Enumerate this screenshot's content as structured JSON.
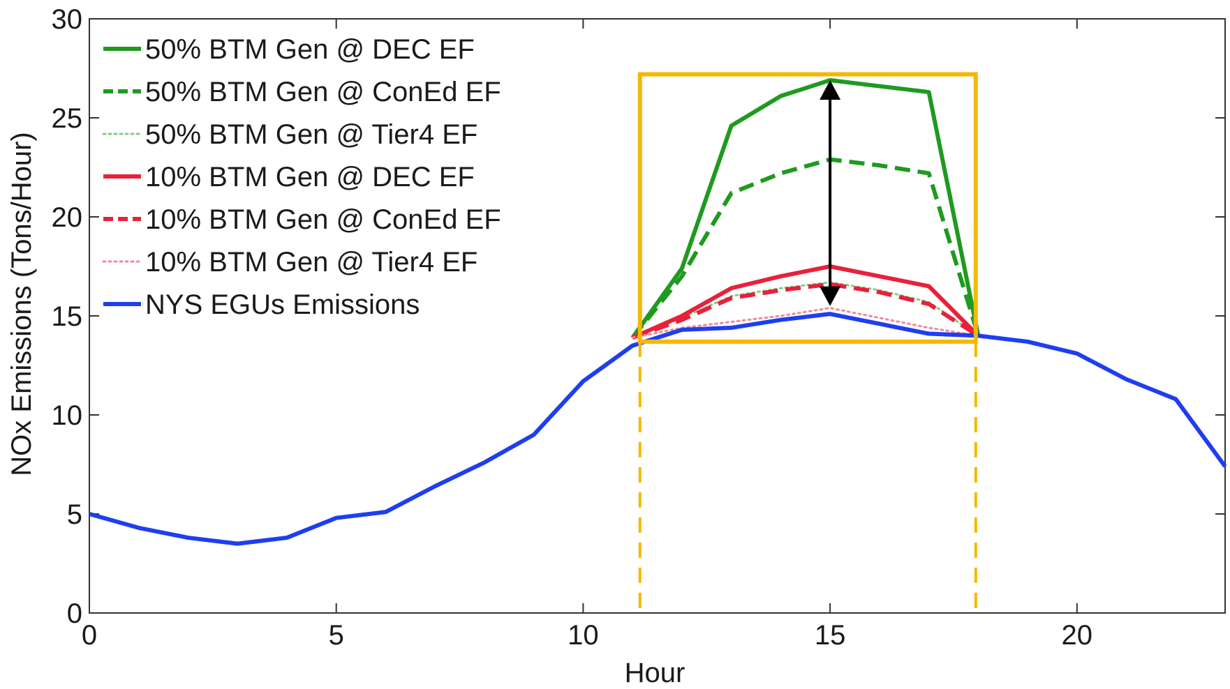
{
  "chart_data": {
    "type": "line",
    "title": "",
    "xlabel": "Hour",
    "ylabel": "NOx Emissions (Tons/Hour)",
    "xlim": [
      0,
      23
    ],
    "ylim": [
      0,
      30
    ],
    "xticks": [
      0,
      5,
      10,
      15,
      20
    ],
    "yticks": [
      0,
      5,
      10,
      15,
      20,
      25,
      30
    ],
    "grid": false,
    "legend_position": "top-left",
    "x": [
      0,
      1,
      2,
      3,
      4,
      5,
      6,
      7,
      8,
      9,
      10,
      11,
      12,
      13,
      14,
      15,
      16,
      17,
      18,
      19,
      20,
      21,
      22,
      23
    ],
    "series": [
      {
        "name": "50% BTM Gen @ DEC EF",
        "color": "#1f9a1f",
        "style": "solid",
        "x": [
          11,
          12,
          13,
          14,
          15,
          16,
          17,
          18
        ],
        "values": [
          13.9,
          17.4,
          24.6,
          26.1,
          26.9,
          26.6,
          26.3,
          14.0
        ]
      },
      {
        "name": "50% BTM Gen @ ConEd EF",
        "color": "#1f9a1f",
        "style": "dashed",
        "x": [
          11,
          12,
          13,
          14,
          15,
          16,
          17,
          18
        ],
        "values": [
          13.9,
          17.0,
          21.2,
          22.2,
          22.9,
          22.6,
          22.2,
          14.0
        ]
      },
      {
        "name": "50% BTM Gen @ Tier4 EF",
        "color": "#7fcf7f",
        "style": "dotted",
        "x": [
          11,
          12,
          13,
          14,
          15,
          16,
          17,
          18
        ],
        "values": [
          13.9,
          14.9,
          16.0,
          16.4,
          16.7,
          16.3,
          15.7,
          14.0
        ]
      },
      {
        "name": "10% BTM Gen @ DEC EF",
        "color": "#e8213a",
        "style": "solid",
        "x": [
          11,
          12,
          13,
          14,
          15,
          16,
          17,
          18
        ],
        "values": [
          13.9,
          15.0,
          16.4,
          17.0,
          17.5,
          17.0,
          16.5,
          14.0
        ]
      },
      {
        "name": "10% BTM Gen @ ConEd EF",
        "color": "#e8213a",
        "style": "dashed",
        "x": [
          11,
          12,
          13,
          14,
          15,
          16,
          17,
          18
        ],
        "values": [
          13.9,
          14.8,
          15.9,
          16.3,
          16.6,
          16.2,
          15.6,
          14.0
        ]
      },
      {
        "name": "10% BTM Gen @ Tier4 EF",
        "color": "#f08a9a",
        "style": "dotted",
        "x": [
          11,
          12,
          13,
          14,
          15,
          16,
          17,
          18
        ],
        "values": [
          13.9,
          14.4,
          14.7,
          15.0,
          15.4,
          14.9,
          14.4,
          14.0
        ]
      },
      {
        "name": "NYS EGUs Emissions",
        "color": "#1f3ef0",
        "style": "solid",
        "x": [
          0,
          1,
          2,
          3,
          4,
          5,
          6,
          7,
          8,
          9,
          10,
          11,
          12,
          13,
          14,
          15,
          16,
          17,
          18,
          19,
          20,
          21,
          22,
          23
        ],
        "values": [
          5.0,
          4.3,
          3.8,
          3.5,
          3.8,
          4.8,
          5.1,
          6.4,
          7.6,
          9.0,
          11.7,
          13.5,
          14.3,
          14.4,
          14.8,
          15.1,
          14.6,
          14.1,
          14.0,
          13.7,
          13.1,
          11.8,
          10.8,
          7.4
        ]
      }
    ],
    "annotations": {
      "highlight_box": {
        "x_range": [
          11.15,
          17.95
        ],
        "y_range": [
          13.7,
          27.2
        ],
        "color": "#f5b800"
      },
      "double_arrow": {
        "x": 15,
        "y_range": [
          15.5,
          26.9
        ],
        "color": "#000000"
      }
    }
  }
}
